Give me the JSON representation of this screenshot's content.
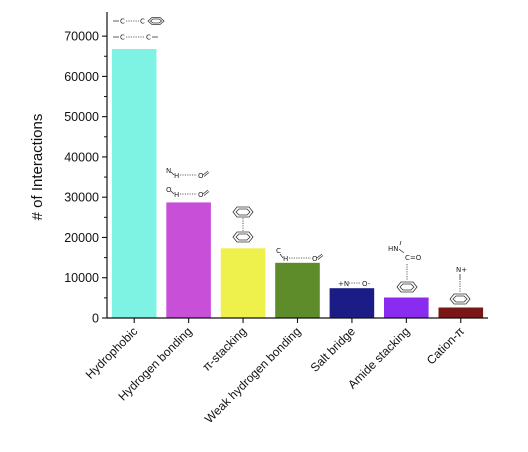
{
  "chart_data": {
    "type": "bar",
    "ylabel": "# of Interactions",
    "ylim": [
      0,
      75000
    ],
    "yticks": [
      0,
      10000,
      20000,
      30000,
      40000,
      50000,
      60000,
      70000
    ],
    "ytick_labels": [
      "0",
      "10000",
      "20000",
      "30000",
      "40000",
      "50000",
      "60000",
      "70000"
    ],
    "categories": [
      "Hydrophobic",
      "Hydrogen bonding",
      "π-stacking",
      "Weak hydrogen bonding",
      "Salt bridge",
      "Amide stacking",
      "Cation-π"
    ],
    "values": [
      66800,
      28700,
      17300,
      13700,
      7400,
      5100,
      2600
    ],
    "colors": [
      "#7ff3e3",
      "#c84fd8",
      "#eef04c",
      "#5e8c2a",
      "#1c1c86",
      "#8a2bf0",
      "#7a1616"
    ],
    "grid": false,
    "legend": "none"
  },
  "annotations": {
    "hydrophobic_top_atoms": [
      "C",
      "C"
    ],
    "hydrophobic_bottom_atoms": [
      "C",
      "C"
    ],
    "hbond_top_atoms": [
      "N",
      "H",
      "O"
    ],
    "hbond_bottom_atoms": [
      "O",
      "H",
      "O"
    ],
    "weak_hbond_atoms": [
      "C",
      "H",
      "O"
    ],
    "salt_bridge_atoms": [
      "+N",
      "O-"
    ],
    "amide_atoms": [
      "HN",
      "C=O"
    ],
    "cation_atom": "N+"
  }
}
